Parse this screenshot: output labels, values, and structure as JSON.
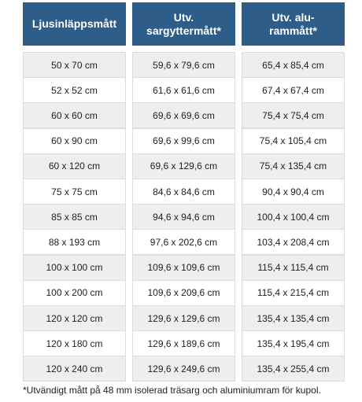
{
  "table": {
    "headers": [
      "Ljusinläppsmått",
      "Utv.\nsargyttermått*",
      "Utv. alu-\nrammått*"
    ],
    "rows": [
      [
        "50 x 70 cm",
        "59,6 x 79,6 cm",
        "65,4 x 85,4 cm"
      ],
      [
        "52 x 52 cm",
        "61,6 x 61,6 cm",
        "67,4 x 67,4 cm"
      ],
      [
        "60 x 60 cm",
        "69,6 x 69,6 cm",
        "75,4 x 75,4 cm"
      ],
      [
        "60 x 90 cm",
        "69,6 x 99,6 cm",
        "75,4 x 105,4 cm"
      ],
      [
        "60 x 120 cm",
        "69,6 x 129,6 cm",
        "75,4 x 135,4 cm"
      ],
      [
        "75 x 75 cm",
        "84,6 x 84,6 cm",
        "90,4 x 90,4 cm"
      ],
      [
        "85 x 85 cm",
        "94,6 x 94,6 cm",
        "100,4 x 100,4 cm"
      ],
      [
        "88 x 193 cm",
        "97,6 x 202,6 cm",
        "103,4 x 208,4 cm"
      ],
      [
        "100 x 100 cm",
        "109,6 x 109,6 cm",
        "115,4 x 115,4 cm"
      ],
      [
        "100 x 200 cm",
        "109,6 x 209,6 cm",
        "115,4 x 215,4 cm"
      ],
      [
        "120 x 120 cm",
        "129,6 x 129,6 cm",
        "135,4 x 135,4 cm"
      ],
      [
        "120 x 180 cm",
        "129,6 x 189,6 cm",
        "135,4 x 195,4 cm"
      ],
      [
        "120 x 240 cm",
        "129,6 x 249,6 cm",
        "135,4 x 255,4 cm"
      ]
    ],
    "footnote": "*Utvändigt mått på 48 mm isolerad träsarg och aluminiumram för kupol."
  }
}
